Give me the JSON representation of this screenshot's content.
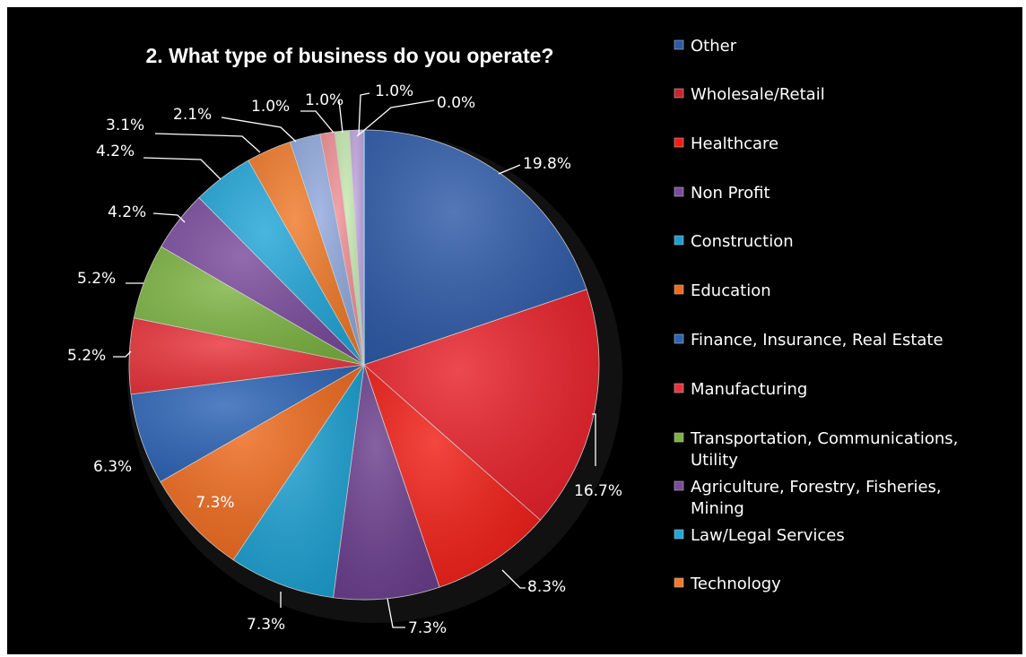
{
  "chart_data": {
    "type": "pie",
    "title": "2. What type of business do you operate?",
    "slices": [
      {
        "label": "Other",
        "value": 19.8,
        "value_label": "19.8%",
        "color": "#2e5aa8"
      },
      {
        "label": "Wholesale/Retail",
        "value": 16.7,
        "value_label": "16.7%",
        "color": "#e8212b"
      },
      {
        "label": "Healthcare",
        "value": 8.3,
        "value_label": "8.3%",
        "color": "#f01e16"
      },
      {
        "label": "Non Profit",
        "value": 7.3,
        "value_label": "7.3%",
        "color": "#6b3f8e"
      },
      {
        "label": "Construction",
        "value": 7.3,
        "value_label": "7.3%",
        "color": "#1b9fd0"
      },
      {
        "label": "Education",
        "value": 7.3,
        "value_label": "7.3%",
        "color": "#ee6a1e"
      },
      {
        "label": "Finance, Insurance, Real Estate",
        "value": 6.3,
        "value_label": "6.3%",
        "color": "#2d64b6"
      },
      {
        "label": "Manufacturing",
        "value": 5.2,
        "value_label": "5.2%",
        "color": "#e9343b"
      },
      {
        "label": "Transportation, Communications, Utility",
        "value": 5.2,
        "value_label": "5.2%",
        "color": "#7cb342"
      },
      {
        "label": "Agriculture, Forestry, Fisheries, Mining",
        "value": 4.2,
        "value_label": "4.2%",
        "color": "#7a4b9c"
      },
      {
        "label": "Law/Legal Services",
        "value": 4.2,
        "value_label": "4.2%",
        "color": "#22a6d8"
      },
      {
        "label": "Technology",
        "value": 3.1,
        "value_label": "3.1%",
        "color": "#f07a2a"
      },
      {
        "label": "",
        "value": 2.1,
        "value_label": "2.1%",
        "color": "#90a9dc"
      },
      {
        "label": "",
        "value": 1.0,
        "value_label": "1.0%",
        "color": "#ef8f95"
      },
      {
        "label": "",
        "value": 1.0,
        "value_label": "1.0%",
        "color": "#c6eab0"
      },
      {
        "label": "",
        "value": 1.0,
        "value_label": "1.0%",
        "color": "#c0a6de"
      },
      {
        "label": "",
        "value": 0.0,
        "value_label": "0.0%",
        "color": "#9fd8ee"
      }
    ],
    "legend": [
      {
        "label": "Other",
        "color": "#2e5aa8"
      },
      {
        "label": "Wholesale/Retail",
        "color": "#c9252f"
      },
      {
        "label": "Healthcare",
        "color": "#f01e16"
      },
      {
        "label": "Non Profit",
        "color": "#7a4b9c"
      },
      {
        "label": "Construction",
        "color": "#1b9fd0"
      },
      {
        "label": "Education",
        "color": "#ee6a1e"
      },
      {
        "label": "Finance, Insurance, Real Estate",
        "color": "#2d64b6"
      },
      {
        "label": "Manufacturing",
        "color": "#e9343b"
      },
      {
        "label": "Transportation, Communications, Utility",
        "color": "#7cb342"
      },
      {
        "label": "Agriculture, Forestry, Fisheries, Mining",
        "color": "#7a4b9c"
      },
      {
        "label": "Law/Legal Services",
        "color": "#22a6d8"
      },
      {
        "label": "Technology",
        "color": "#f07a2a"
      }
    ],
    "legend_position": "right"
  }
}
